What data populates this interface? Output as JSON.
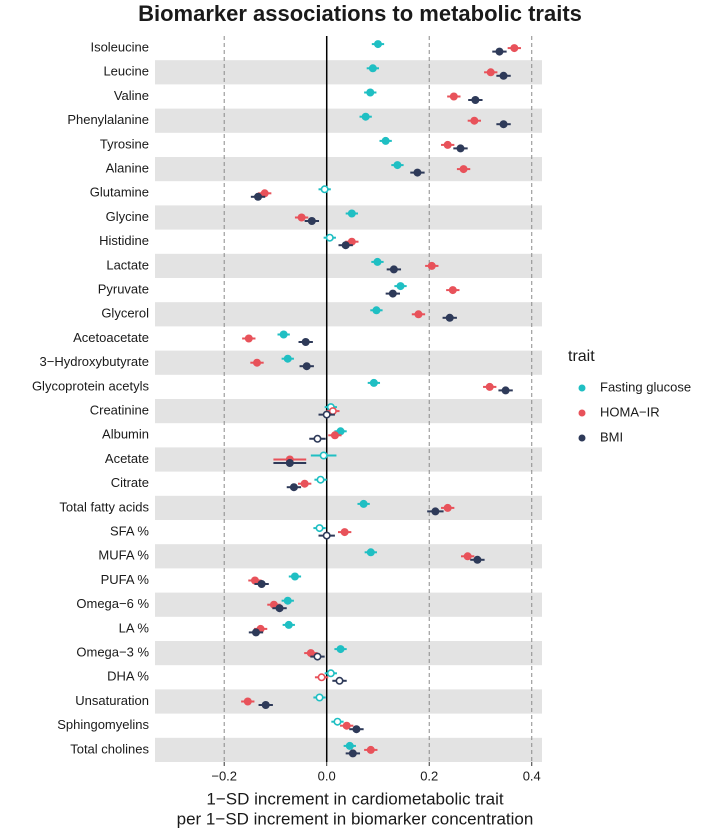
{
  "chart_data": {
    "type": "forest",
    "title": "Biomarker associations to metabolic traits",
    "xlabel": [
      "1−SD increment in cardiometabolic trait",
      "per 1−SD increment in biomarker concentration"
    ],
    "legend_title": "trait",
    "legend_position": "right",
    "categories": [
      "Isoleucine",
      "Leucine",
      "Valine",
      "Phenylalanine",
      "Tyrosine",
      "Alanine",
      "Glutamine",
      "Glycine",
      "Histidine",
      "Lactate",
      "Pyruvate",
      "Glycerol",
      "Acetoacetate",
      "3−Hydroxybutyrate",
      "Glycoprotein acetyls",
      "Creatinine",
      "Albumin",
      "Acetate",
      "Citrate",
      "Total fatty acids",
      "SFA %",
      "MUFA %",
      "PUFA %",
      "Omega−6 %",
      "LA %",
      "Omega−3 %",
      "DHA %",
      "Unsaturation",
      "Sphingomyelins",
      "Total cholines"
    ],
    "xlim": [
      -0.335,
      0.42
    ],
    "xticks": [
      {
        "value": -0.2,
        "label": "−0.2"
      },
      {
        "value": 0,
        "label": "0.0"
      },
      0.2,
      0.4
    ],
    "reference_line": 0,
    "grid": true,
    "row_shading": true,
    "series": [
      {
        "name": "Fasting glucose",
        "color": "#1fbfc3",
        "values": [
          0.1,
          0.09,
          0.085,
          0.076,
          0.115,
          0.138,
          -0.004,
          0.049,
          0.006,
          0.099,
          0.144,
          0.097,
          -0.084,
          -0.076,
          0.092,
          0.008,
          0.027,
          -0.006,
          -0.012,
          0.072,
          -0.014,
          0.086,
          -0.062,
          -0.076,
          -0.074,
          0.027,
          0.008,
          -0.014,
          0.021,
          0.045
        ],
        "errors": [
          0.012,
          0.012,
          0.012,
          0.012,
          0.012,
          0.012,
          0.012,
          0.012,
          0.012,
          0.012,
          0.012,
          0.012,
          0.012,
          0.012,
          0.012,
          0.012,
          0.012,
          0.025,
          0.012,
          0.012,
          0.012,
          0.012,
          0.012,
          0.012,
          0.012,
          0.012,
          0.012,
          0.012,
          0.012,
          0.012
        ],
        "significant": [
          true,
          true,
          true,
          true,
          true,
          true,
          false,
          true,
          false,
          true,
          true,
          true,
          true,
          true,
          true,
          false,
          true,
          false,
          false,
          true,
          false,
          true,
          true,
          true,
          true,
          true,
          false,
          false,
          false,
          true
        ]
      },
      {
        "name": "HOMA−IR",
        "color": "#e8525a",
        "values": [
          0.366,
          0.32,
          0.248,
          0.288,
          0.236,
          0.267,
          -0.121,
          -0.049,
          0.049,
          0.205,
          0.246,
          0.179,
          -0.152,
          -0.136,
          0.318,
          0.012,
          0.016,
          -0.072,
          -0.043,
          0.236,
          0.035,
          0.275,
          -0.14,
          -0.103,
          -0.129,
          -0.031,
          -0.01,
          -0.154,
          0.039,
          0.086
        ],
        "errors": [
          0.013,
          0.013,
          0.013,
          0.013,
          0.013,
          0.013,
          0.013,
          0.013,
          0.013,
          0.013,
          0.013,
          0.013,
          0.013,
          0.013,
          0.013,
          0.013,
          0.013,
          0.032,
          0.013,
          0.013,
          0.013,
          0.013,
          0.013,
          0.013,
          0.013,
          0.013,
          0.013,
          0.013,
          0.013,
          0.013
        ],
        "significant": [
          true,
          true,
          true,
          true,
          true,
          true,
          true,
          true,
          true,
          true,
          true,
          true,
          true,
          true,
          true,
          false,
          true,
          true,
          true,
          true,
          true,
          true,
          true,
          true,
          true,
          true,
          false,
          true,
          true,
          true
        ]
      },
      {
        "name": "BMI",
        "color": "#2e3a59",
        "values": [
          0.337,
          0.345,
          0.29,
          0.345,
          0.261,
          0.177,
          -0.134,
          -0.029,
          0.037,
          0.131,
          0.129,
          0.24,
          -0.041,
          -0.039,
          0.349,
          0,
          -0.018,
          -0.072,
          -0.064,
          0.212,
          0,
          0.294,
          -0.127,
          -0.092,
          -0.138,
          -0.018,
          0.025,
          -0.119,
          0.058,
          0.051
        ],
        "errors": [
          0.014,
          0.014,
          0.014,
          0.014,
          0.014,
          0.014,
          0.014,
          0.014,
          0.014,
          0.014,
          0.014,
          0.014,
          0.014,
          0.014,
          0.014,
          0.016,
          0.016,
          0.032,
          0.014,
          0.016,
          0.016,
          0.014,
          0.014,
          0.014,
          0.014,
          0.014,
          0.014,
          0.014,
          0.014,
          0.014
        ],
        "significant": [
          true,
          true,
          true,
          true,
          true,
          true,
          true,
          true,
          true,
          true,
          true,
          true,
          true,
          true,
          true,
          false,
          false,
          true,
          true,
          true,
          false,
          true,
          true,
          true,
          true,
          false,
          false,
          true,
          true,
          true
        ]
      }
    ]
  }
}
